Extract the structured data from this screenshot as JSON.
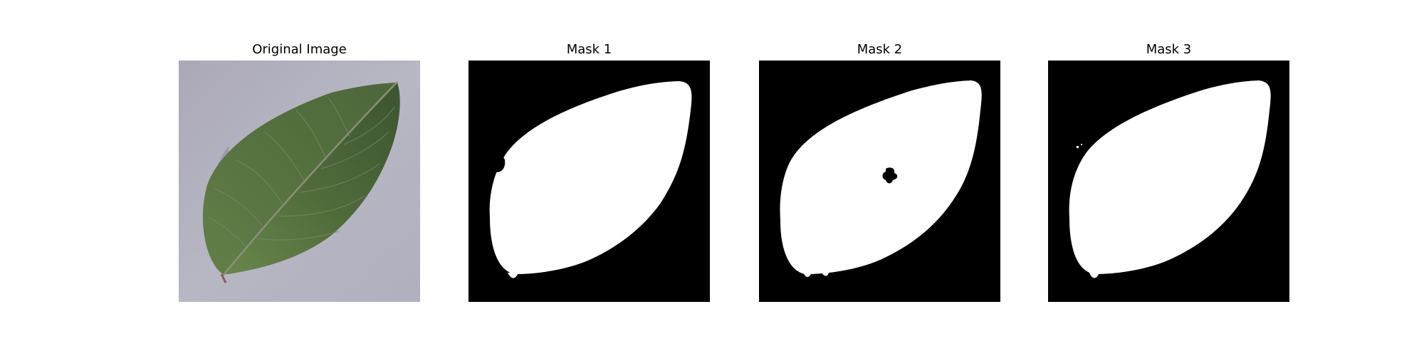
{
  "figure": {
    "panels": [
      {
        "title": "Original Image"
      },
      {
        "title": "Mask 1"
      },
      {
        "title": "Mask 2"
      },
      {
        "title": "Mask 3"
      }
    ],
    "colors": {
      "mask_background": "#000000",
      "mask_foreground": "#ffffff",
      "photo_background": "#b3b3c2",
      "leaf_dark": "#3f5a2f",
      "leaf_light": "#6a8a4e",
      "leaf_vein": "#9aa389"
    }
  }
}
